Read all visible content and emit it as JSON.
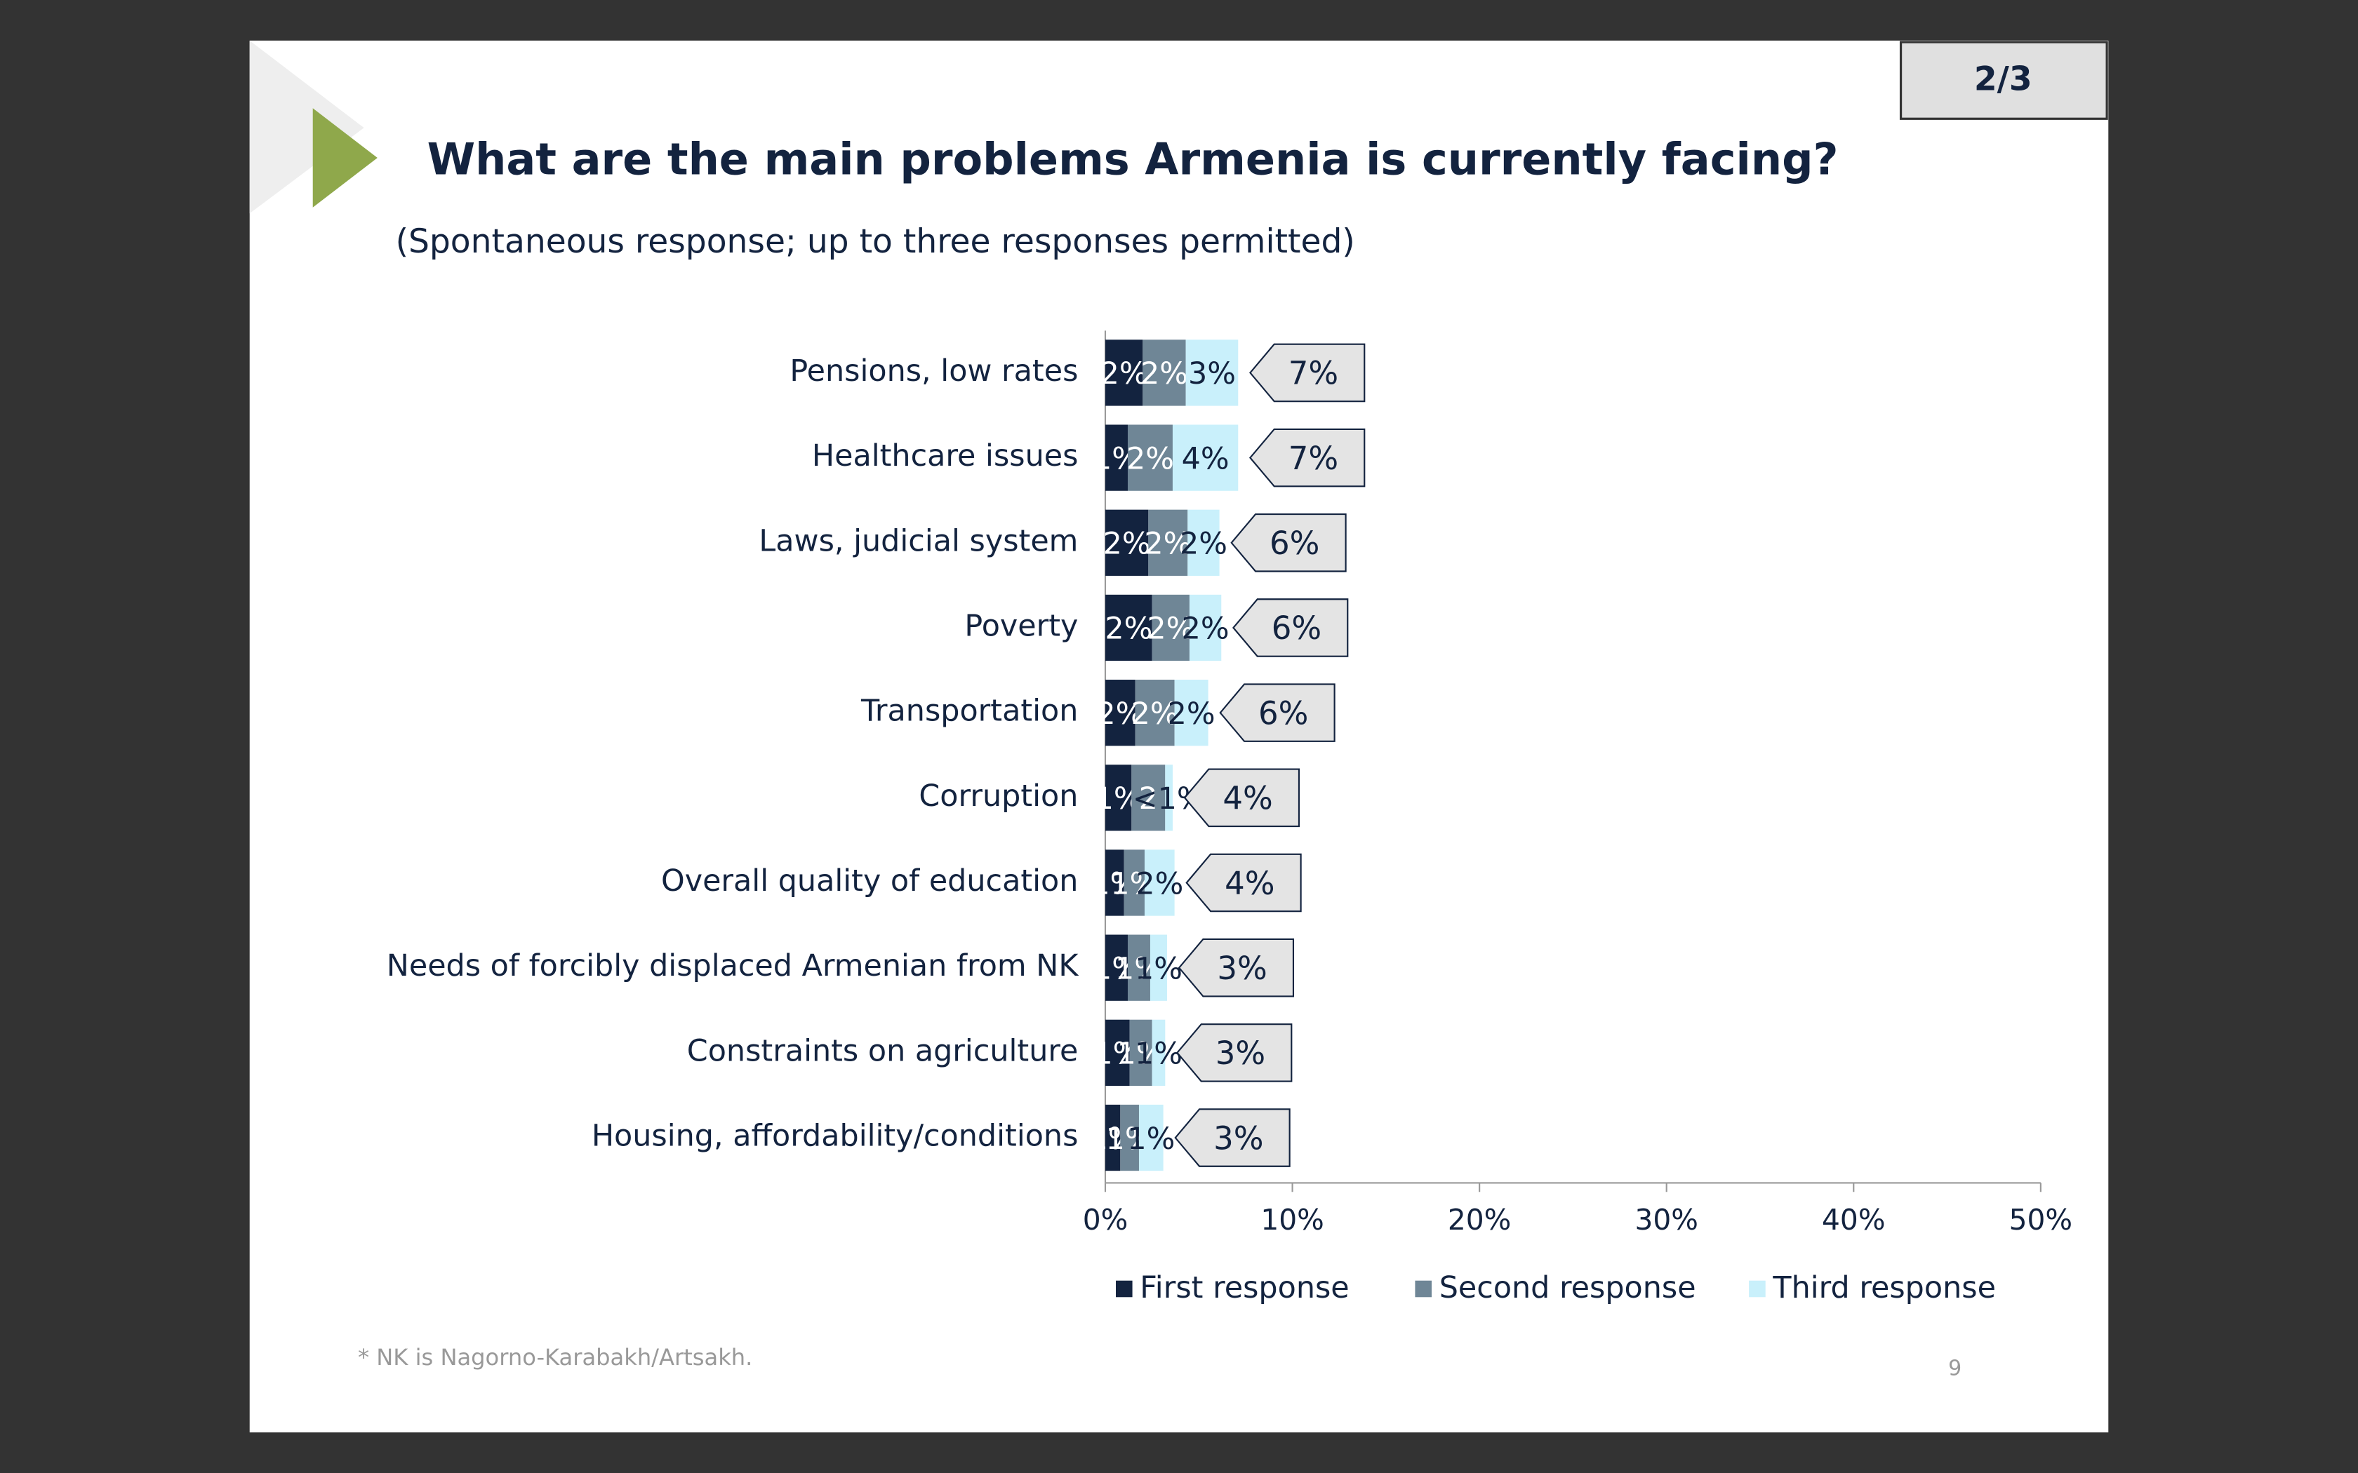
{
  "page_indicator": "2/3",
  "page_number": "9",
  "footnote": "* NK is Nagorno-Karabakh/Artsakh.",
  "chart_data": {
    "type": "stacked_barh",
    "title": "What are the main problems Armenia is currently facing?",
    "subtitle": "(Spontaneous response; up to three responses permitted)",
    "categories": [
      "Pensions, low rates",
      "Healthcare issues",
      "Laws, judicial system",
      "Poverty",
      "Transportation",
      "Corruption",
      "Overall quality of education",
      "Needs of forcibly displaced Armenian from NK",
      "Constraints on agriculture",
      "Housing, affordability/conditions"
    ],
    "series": [
      {
        "name": "First response",
        "color": "#13233f",
        "label_color": "#ffffff",
        "values": [
          2.0,
          1.2,
          2.3,
          2.5,
          1.6,
          1.4,
          1.0,
          1.2,
          1.3,
          0.8
        ],
        "value_labels": [
          "2%",
          "1%",
          "2%",
          "2%",
          "2%",
          "1%",
          "1%",
          "1%",
          "1%",
          "1%"
        ]
      },
      {
        "name": "Second response",
        "color": "#6f8696",
        "label_color": "#ffffff",
        "values": [
          2.3,
          2.4,
          2.1,
          2.0,
          2.1,
          1.8,
          1.1,
          1.2,
          1.2,
          1.0
        ],
        "value_labels": [
          "2%",
          "2%",
          "2%",
          "2%",
          "2%",
          "2",
          "1%",
          "1%",
          "1%",
          "1%"
        ]
      },
      {
        "name": "Third response",
        "color": "#c9f0fb",
        "label_color": "#13233f",
        "values": [
          2.8,
          3.5,
          1.7,
          1.7,
          1.8,
          0.4,
          1.6,
          0.9,
          0.7,
          1.3
        ],
        "value_labels": [
          "3%",
          "4%",
          "2%",
          "2%",
          "2%",
          "<1%",
          "2%",
          "1%",
          "1%",
          "1%"
        ]
      }
    ],
    "totals": {
      "values": [
        7,
        7,
        6,
        6,
        6,
        4,
        4,
        3,
        3,
        3
      ],
      "value_labels": [
        "7%",
        "7%",
        "6%",
        "6%",
        "6%",
        "4%",
        "4%",
        "3%",
        "3%",
        "3%"
      ]
    },
    "xlim": [
      0,
      50
    ],
    "xticks": [
      {
        "value": 0,
        "label": "0%"
      },
      {
        "value": 10,
        "label": "10%"
      },
      {
        "value": 20,
        "label": "20%"
      },
      {
        "value": 30,
        "label": "30%"
      },
      {
        "value": 40,
        "label": "40%"
      },
      {
        "value": 50,
        "label": "50%"
      }
    ],
    "legend": "bottom"
  }
}
